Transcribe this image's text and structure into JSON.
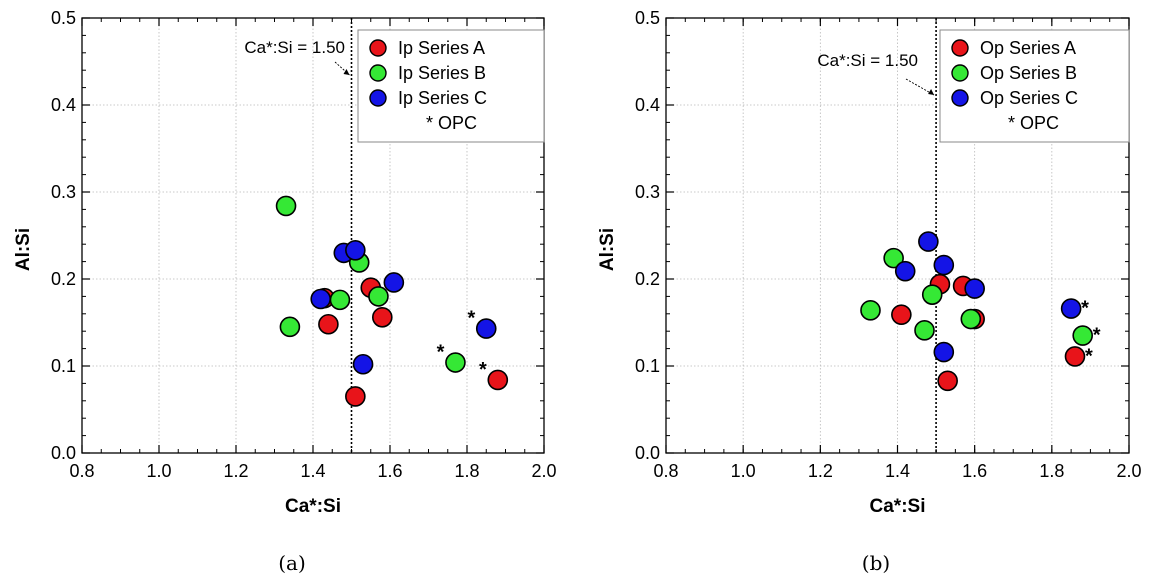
{
  "chart_data": [
    {
      "type": "scatter",
      "caption": "(a)",
      "xlabel": "Ca*:Si",
      "ylabel": "Al:Si",
      "xlim": [
        0.8,
        2.0
      ],
      "ylim": [
        0.0,
        0.5
      ],
      "xticks": [
        "0.8",
        "1.0",
        "1.2",
        "1.4",
        "1.6",
        "1.8",
        "2.0"
      ],
      "yticks": [
        "0.0",
        "0.1",
        "0.2",
        "0.3",
        "0.4",
        "0.5"
      ],
      "grid": true,
      "legend_position": "top-right",
      "legend_note": "* OPC",
      "reference_line": {
        "x": 1.5,
        "label": "Ca*:Si = 1.50"
      },
      "series": [
        {
          "name": "Ip Series A",
          "color": "#e8141a",
          "points": [
            [
              1.44,
              0.148
            ],
            [
              1.43,
              0.178
            ],
            [
              1.51,
              0.065
            ],
            [
              1.55,
              0.19
            ],
            [
              1.58,
              0.156
            ],
            [
              1.88,
              0.084,
              "*"
            ]
          ]
        },
        {
          "name": "Ip Series B",
          "color": "#35e835",
          "points": [
            [
              1.33,
              0.284
            ],
            [
              1.34,
              0.145
            ],
            [
              1.47,
              0.176
            ],
            [
              1.52,
              0.219
            ],
            [
              1.57,
              0.18
            ],
            [
              1.77,
              0.104,
              "*"
            ]
          ]
        },
        {
          "name": "Ip Series C",
          "color": "#1414e6",
          "points": [
            [
              1.42,
              0.177
            ],
            [
              1.48,
              0.23
            ],
            [
              1.51,
              0.233
            ],
            [
              1.53,
              0.102
            ],
            [
              1.61,
              0.196
            ],
            [
              1.85,
              0.143,
              "*"
            ]
          ]
        }
      ]
    },
    {
      "type": "scatter",
      "caption": "(b)",
      "xlabel": "Ca*:Si",
      "ylabel": "Al:Si",
      "xlim": [
        0.8,
        2.0
      ],
      "ylim": [
        0.0,
        0.5
      ],
      "xticks": [
        "0.8",
        "1.0",
        "1.2",
        "1.4",
        "1.6",
        "1.8",
        "2.0"
      ],
      "yticks": [
        "0.0",
        "0.1",
        "0.2",
        "0.3",
        "0.4",
        "0.5"
      ],
      "grid": true,
      "legend_position": "top-right",
      "legend_note": "* OPC",
      "reference_line": {
        "x": 1.5,
        "label": "Ca*:Si = 1.50"
      },
      "series": [
        {
          "name": "Op Series A",
          "color": "#e8141a",
          "points": [
            [
              1.41,
              0.159
            ],
            [
              1.51,
              0.194
            ],
            [
              1.53,
              0.083
            ],
            [
              1.57,
              0.192
            ],
            [
              1.6,
              0.154
            ],
            [
              1.86,
              0.111,
              "*"
            ]
          ]
        },
        {
          "name": "Op Series B",
          "color": "#35e835",
          "points": [
            [
              1.33,
              0.164
            ],
            [
              1.39,
              0.224
            ],
            [
              1.47,
              0.141
            ],
            [
              1.49,
              0.182
            ],
            [
              1.59,
              0.154
            ],
            [
              1.88,
              0.135,
              "*"
            ]
          ]
        },
        {
          "name": "Op Series C",
          "color": "#1414e6",
          "points": [
            [
              1.42,
              0.209
            ],
            [
              1.48,
              0.243
            ],
            [
              1.52,
              0.216
            ],
            [
              1.52,
              0.116
            ],
            [
              1.6,
              0.189
            ],
            [
              1.85,
              0.166,
              "*"
            ]
          ]
        }
      ]
    }
  ]
}
